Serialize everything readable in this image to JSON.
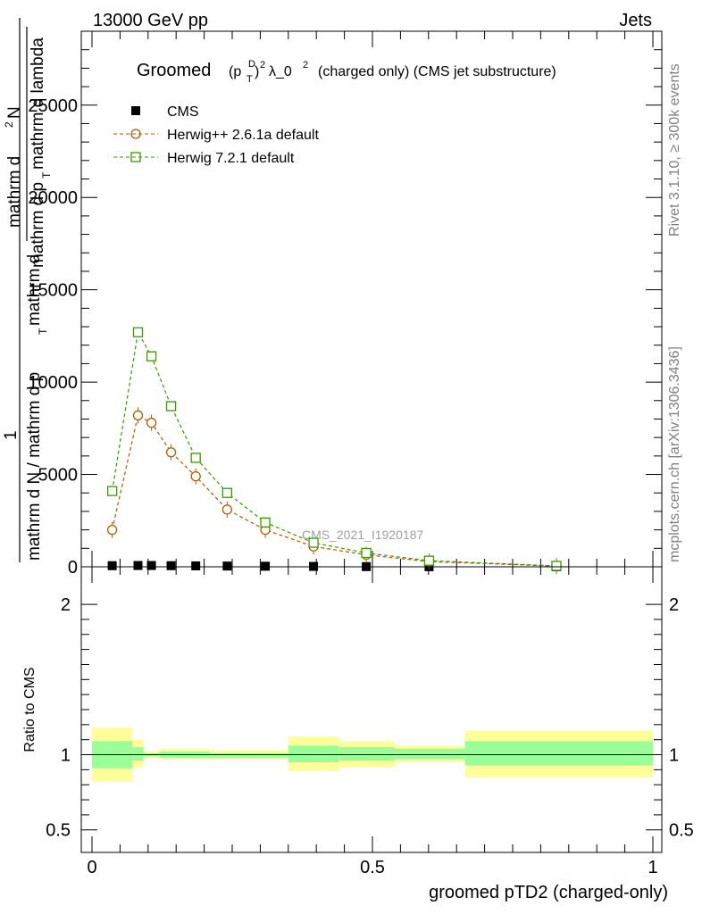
{
  "header": {
    "left": "13000 GeV pp",
    "right": "Jets"
  },
  "side_labels": {
    "rivet": "Rivet 3.1.10, ≥ 300k events",
    "mcplots": "mcplots.cern.ch [arXiv:1306.3436]"
  },
  "chart_data": [
    {
      "type": "line",
      "title_main": "Groomed",
      "title_sup_p": "(p",
      "title_sub_T": "T",
      "title_sup_D": "D",
      "title_close": ")",
      "title_pow": "2",
      "title_lambda": "λ_0",
      "title_pow2": "2",
      "title_rest": "(charged only) (CMS jet substructure)",
      "ylabel_parts": {
        "numer": "mathrm d",
        "numer_sup": "2",
        "numer_N": "N",
        "denom": "mathrm d p",
        "denom_sub": "T",
        "denom_rest": "mathrm d lambda",
        "one": "1",
        "frac_denom": "mathrm d N / mathrm d p",
        "frac_sub": "T",
        "frac_rest": "mathrm d"
      },
      "watermark": "CMS_2021_I1920187",
      "ylim": [
        0,
        29000
      ],
      "yticks": [
        0,
        5000,
        10000,
        15000,
        20000,
        25000
      ],
      "ytick_labels": [
        "0",
        "5000",
        "10000",
        "15000",
        "20000",
        "25000"
      ],
      "xlim": [
        0,
        1
      ],
      "legend_position": "top-left",
      "series": [
        {
          "name": "CMS",
          "color": "#000000",
          "marker": "filled-square",
          "x": [
            0.036,
            0.082,
            0.106,
            0.141,
            0.185,
            0.241,
            0.309,
            0.395,
            0.489,
            0.601,
            0.828
          ],
          "y": [
            60,
            70,
            70,
            60,
            50,
            40,
            30,
            20,
            10,
            5,
            2
          ]
        },
        {
          "name": "Herwig++ 2.6.1a default",
          "color": "#b35a00",
          "marker": "open-circle",
          "x": [
            0.036,
            0.082,
            0.106,
            0.141,
            0.185,
            0.241,
            0.309,
            0.395,
            0.489,
            0.601,
            0.828
          ],
          "y": [
            2000,
            8200,
            7800,
            6200,
            4900,
            3100,
            2000,
            1100,
            650,
            280,
            40
          ]
        },
        {
          "name": "Herwig 7.2.1 default",
          "color": "#3a9a00",
          "marker": "open-square",
          "x": [
            0.036,
            0.082,
            0.106,
            0.141,
            0.185,
            0.241,
            0.309,
            0.395,
            0.489,
            0.601,
            0.828
          ],
          "y": [
            4100,
            12700,
            11400,
            8700,
            5900,
            4000,
            2400,
            1300,
            750,
            330,
            50
          ]
        }
      ]
    },
    {
      "type": "area",
      "ylabel": "Ratio to CMS",
      "xlabel": "groomed pTD2 (charged-only)",
      "xlim": [
        0,
        1
      ],
      "ylim": [
        0.35,
        2.25
      ],
      "xticks": [
        0,
        0.5,
        1
      ],
      "xtick_labels": [
        "0",
        "0.5",
        "1"
      ],
      "yticks": [
        0.5,
        1,
        2
      ],
      "ytick_labels": [
        "0.5",
        "1",
        "2"
      ],
      "bins": [
        {
          "x0": 0.0,
          "x1": 0.072,
          "inner": [
            0.91,
            1.09
          ],
          "outer": [
            0.82,
            1.18
          ]
        },
        {
          "x0": 0.072,
          "x1": 0.092,
          "inner": [
            0.96,
            1.05
          ],
          "outer": [
            0.92,
            1.1
          ]
        },
        {
          "x0": 0.092,
          "x1": 0.12,
          "inner": [
            0.99,
            1.01
          ],
          "outer": [
            0.98,
            1.02
          ]
        },
        {
          "x0": 0.12,
          "x1": 0.165,
          "inner": [
            0.98,
            1.02
          ],
          "outer": [
            0.97,
            1.04
          ]
        },
        {
          "x0": 0.165,
          "x1": 0.21,
          "inner": [
            0.98,
            1.02
          ],
          "outer": [
            0.97,
            1.04
          ]
        },
        {
          "x0": 0.21,
          "x1": 0.275,
          "inner": [
            0.98,
            1.01
          ],
          "outer": [
            0.97,
            1.03
          ]
        },
        {
          "x0": 0.275,
          "x1": 0.35,
          "inner": [
            0.98,
            1.01
          ],
          "outer": [
            0.97,
            1.03
          ]
        },
        {
          "x0": 0.35,
          "x1": 0.44,
          "inner": [
            0.95,
            1.06
          ],
          "outer": [
            0.89,
            1.12
          ]
        },
        {
          "x0": 0.44,
          "x1": 0.54,
          "inner": [
            0.96,
            1.05
          ],
          "outer": [
            0.92,
            1.09
          ]
        },
        {
          "x0": 0.54,
          "x1": 0.665,
          "inner": [
            0.97,
            1.04
          ],
          "outer": [
            0.95,
            1.06
          ]
        },
        {
          "x0": 0.665,
          "x1": 1.0,
          "inner": [
            0.93,
            1.09
          ],
          "outer": [
            0.85,
            1.16
          ]
        }
      ],
      "reference_line": 1,
      "inner_color": "#99ff99",
      "outer_color": "#ffff99"
    }
  ]
}
